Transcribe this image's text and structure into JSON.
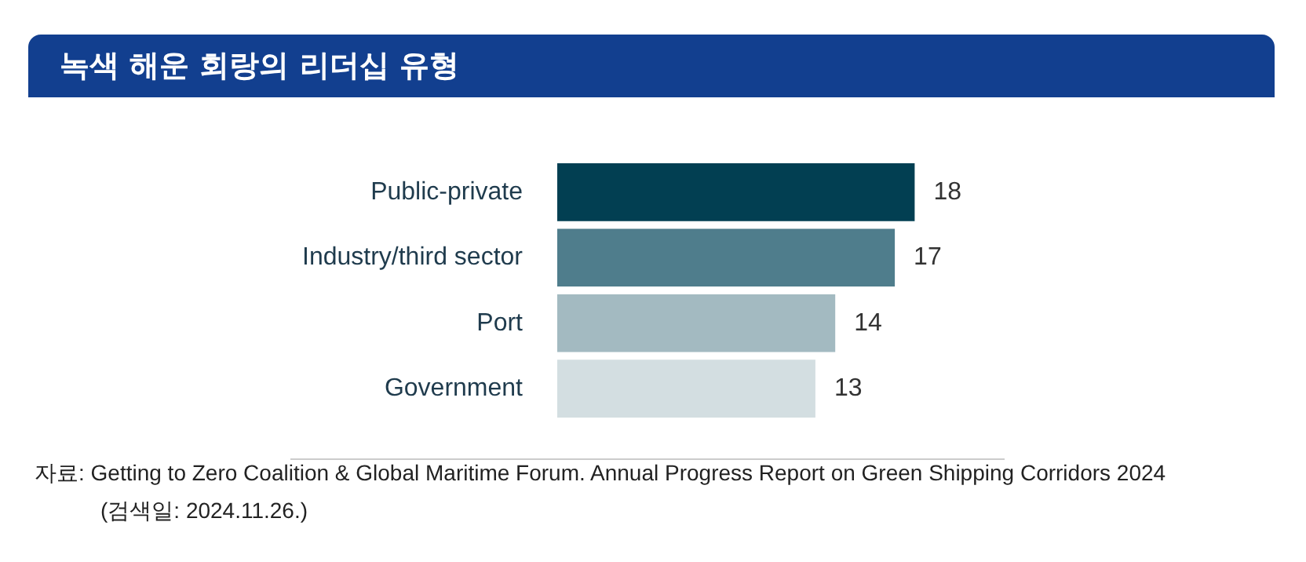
{
  "chart_data": {
    "type": "bar",
    "orientation": "horizontal",
    "title": "녹색 해운 회랑의 리더십 유형",
    "categories": [
      "Public-private",
      "Industry/third sector",
      "Port",
      "Government"
    ],
    "values": [
      18,
      17,
      14,
      13
    ],
    "colors": [
      "#023f52",
      "#4f7d8c",
      "#a3bac1",
      "#d3dee1"
    ],
    "data_labels": true,
    "annotations": [
      "자료: Getting to Zero Coalition & Global Maritime Forum. Annual Progress Report on Green Shipping Corridors 2024",
      "(검색일: 2024.11.26.)"
    ]
  }
}
